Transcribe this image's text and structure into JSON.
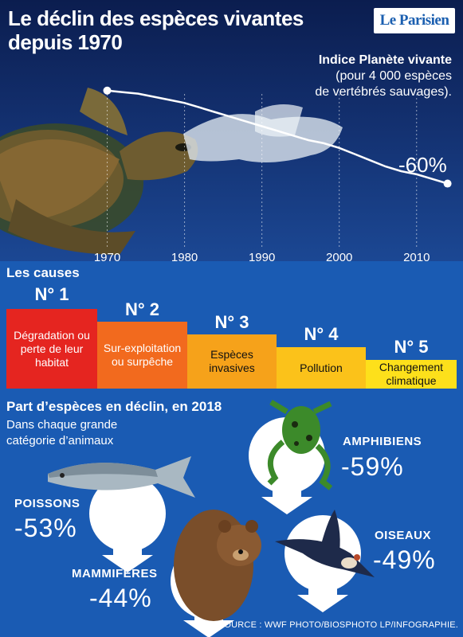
{
  "header": {
    "title_line1": "Le déclin des espèces vivantes",
    "title_line2": "depuis 1970",
    "logo": "Le Parisien"
  },
  "chart_data": {
    "type": "line",
    "title": "Indice Planète vivante",
    "subtitle_line1": "(pour 4 000 espèces",
    "subtitle_line2": "de vertébrés sauvages).",
    "x": [
      1970,
      1972,
      1974,
      1976,
      1978,
      1980,
      1982,
      1984,
      1986,
      1988,
      1990,
      1992,
      1994,
      1996,
      1998,
      2000,
      2002,
      2004,
      2006,
      2008,
      2010,
      2012,
      2014
    ],
    "y": [
      1.0,
      0.99,
      0.98,
      0.96,
      0.94,
      0.92,
      0.89,
      0.86,
      0.83,
      0.8,
      0.77,
      0.74,
      0.71,
      0.68,
      0.66,
      0.63,
      0.59,
      0.55,
      0.51,
      0.48,
      0.46,
      0.43,
      0.4
    ],
    "xticks": [
      "1970",
      "1980",
      "1990",
      "2000",
      "2010"
    ],
    "xlim": [
      1965,
      2016
    ],
    "ylim": [
      0.3,
      1.05
    ],
    "end_label": "-60%",
    "grid": "vertical dotted"
  },
  "causes": {
    "title": "Les causes",
    "items": [
      {
        "num": "N° 1",
        "label": "Dégradation ou perte de leur habitat",
        "color": "#e52520"
      },
      {
        "num": "N° 2",
        "label": "Sur-exploitation ou surpêche",
        "color": "#f26a1e"
      },
      {
        "num": "N° 3",
        "label": "Espèces invasives",
        "color": "#f6a21a"
      },
      {
        "num": "N° 4",
        "label": "Pollution",
        "color": "#fbc21a"
      },
      {
        "num": "N° 5",
        "label": "Changement climatique",
        "color": "#fde01b"
      }
    ]
  },
  "species": {
    "title": "Part d’espèces en déclin, en 2018",
    "subtitle_line1": "Dans chaque grande",
    "subtitle_line2": "catégorie d’animaux",
    "groups": [
      {
        "name": "AMPHIBIENS",
        "pct": "-59%"
      },
      {
        "name": "POISSONS",
        "pct": "-53%"
      },
      {
        "name": "OISEAUX",
        "pct": "-49%"
      },
      {
        "name": "MAMMIFÈRES",
        "pct": "-44%"
      }
    ],
    "source": "SOURCE : WWF  PHOTO/BIOSPHOTO LP/INFOGRAPHIE."
  }
}
